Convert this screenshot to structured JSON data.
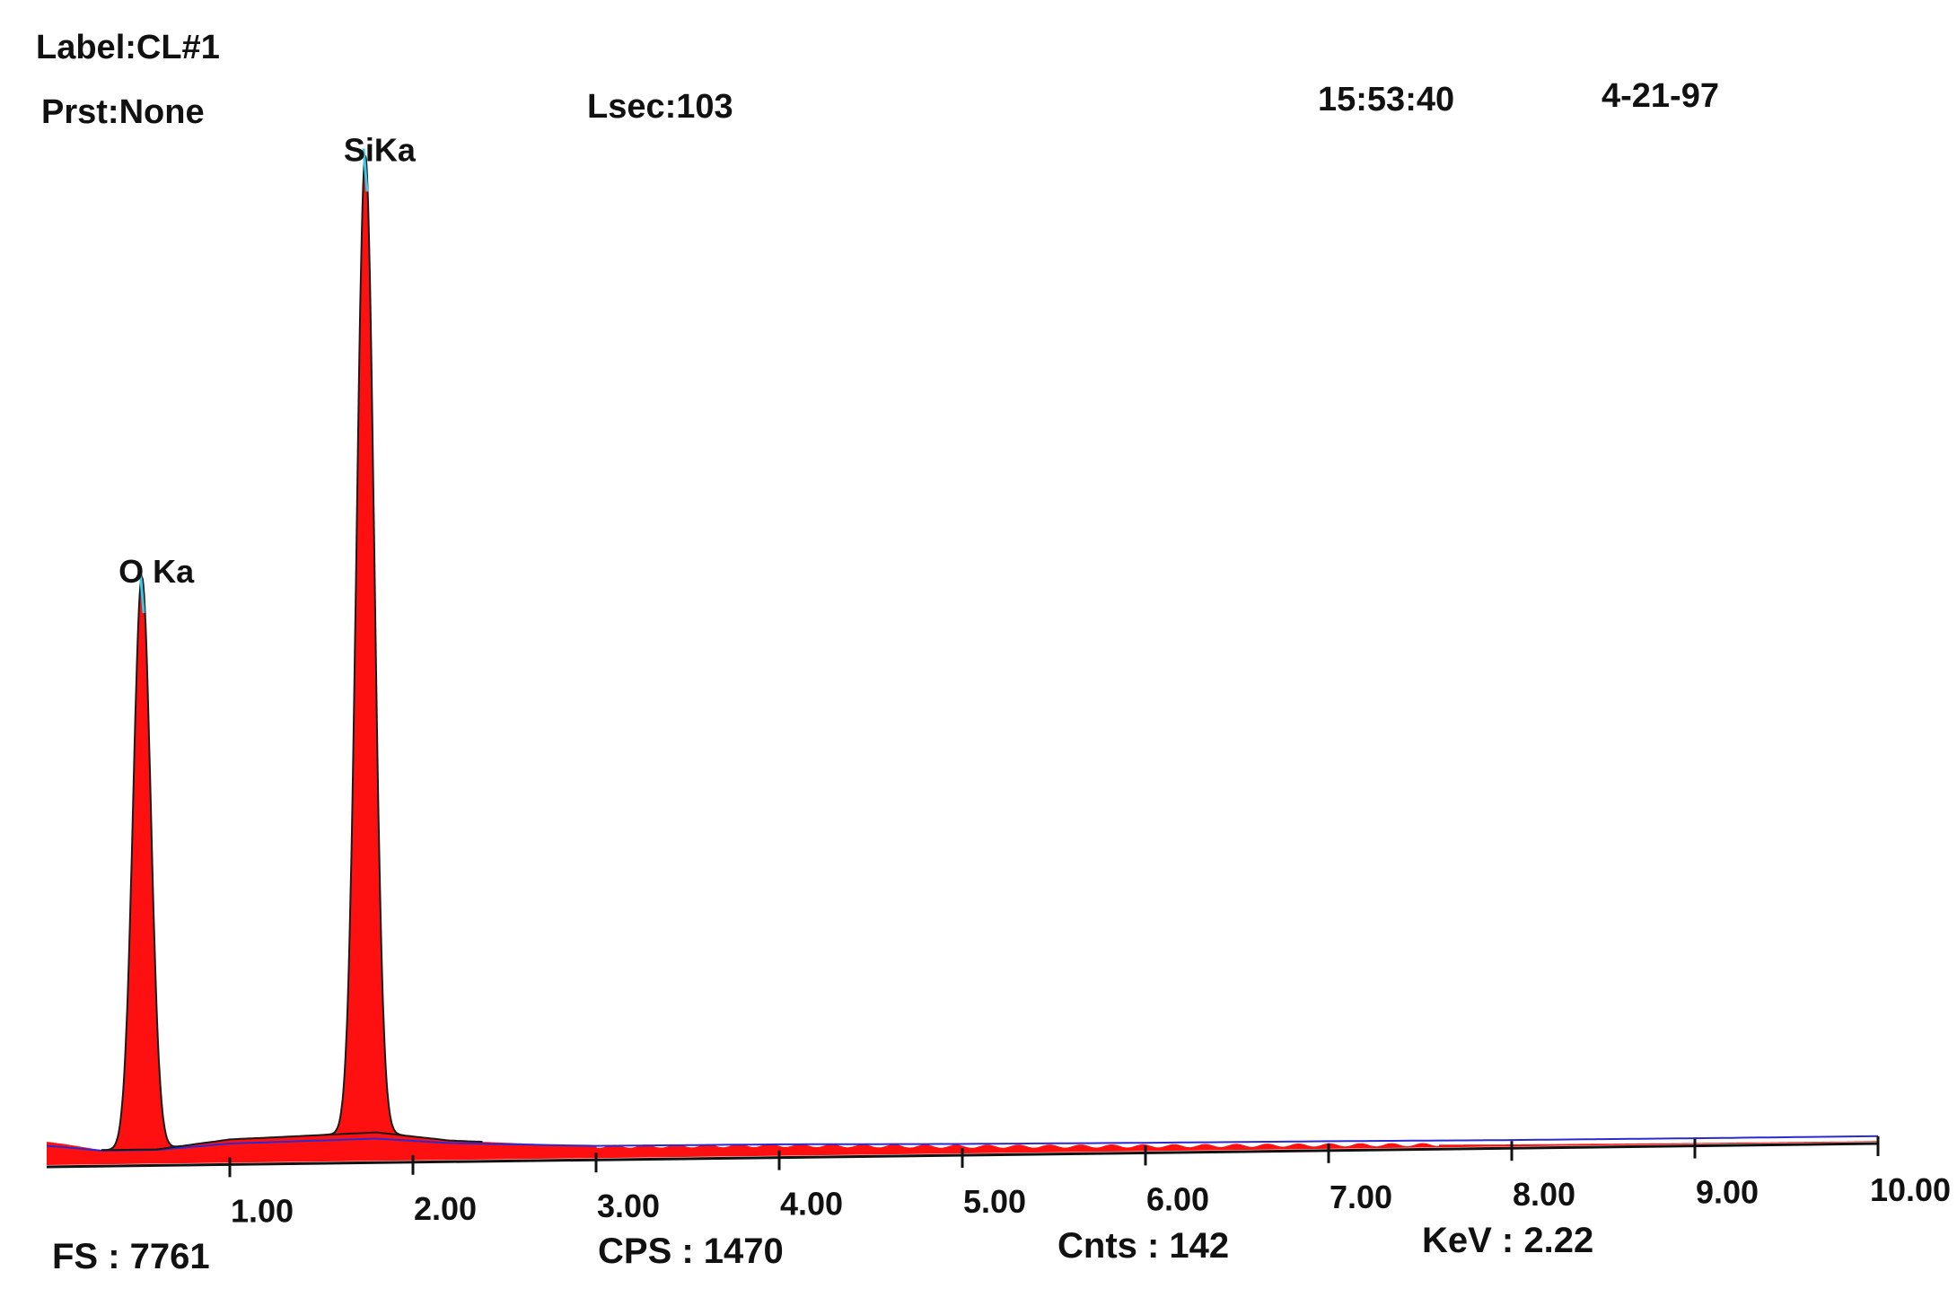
{
  "header": {
    "label": "Label:CL#1",
    "preset": "Prst:None",
    "lsec": "Lsec:103",
    "time": "15:53:40",
    "date": "4-21-97"
  },
  "footer": {
    "fs": "FS : 7761",
    "cps": "CPS : 1470",
    "cnts": "Cnts : 142",
    "kev": "KeV : 2.22"
  },
  "colors": {
    "spectrum_fill": "#ff1010",
    "fit_line": "#38c8e8",
    "background_line": "#1a1a1a",
    "baseline_line": "#2a2ad0"
  },
  "chart_data": {
    "type": "area",
    "xlabel": "",
    "ylabel": "",
    "xlim": [
      0,
      10
    ],
    "ylim": [
      0,
      7761
    ],
    "x_ticks": [
      "1.00",
      "2.00",
      "3.00",
      "4.00",
      "5.00",
      "6.00",
      "7.00",
      "8.00",
      "9.00",
      "10.00"
    ],
    "tick_values": [
      1,
      2,
      3,
      4,
      5,
      6,
      7,
      8,
      9,
      10
    ],
    "peaks": [
      {
        "label": "O Ka",
        "energy": 0.52,
        "counts": 4530
      },
      {
        "label": "SiKa",
        "energy": 1.74,
        "counts": 7761
      }
    ],
    "background": [
      [
        0.0,
        180
      ],
      [
        0.1,
        160
      ],
      [
        0.3,
        110
      ],
      [
        0.6,
        110
      ],
      [
        1.0,
        180
      ],
      [
        1.4,
        200
      ],
      [
        1.8,
        220
      ],
      [
        2.2,
        150
      ],
      [
        3.0,
        90
      ],
      [
        4.0,
        80
      ],
      [
        5.0,
        55
      ],
      [
        6.0,
        40
      ],
      [
        7.0,
        30
      ],
      [
        8.0,
        15
      ],
      [
        9.0,
        8
      ],
      [
        10.0,
        5
      ]
    ]
  }
}
